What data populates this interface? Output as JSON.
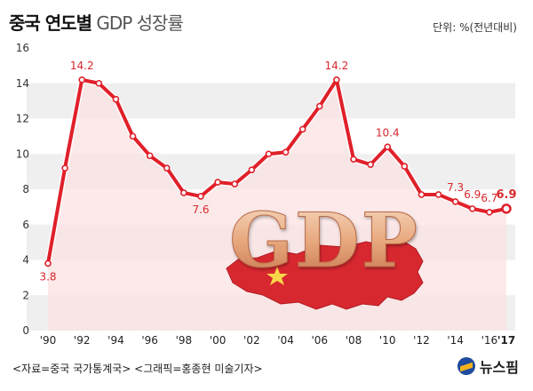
{
  "header": {
    "title_bold": "중국 연도별",
    "title_light": "GDP 성장률",
    "unit": "단위: %(전년대비)"
  },
  "footer": {
    "source": "<자료=중국 국가통계국> <그래픽=홍종현 미술기자>",
    "logo": "뉴스핌"
  },
  "illustration": {
    "text": "GDP",
    "map_color": "#d8282f",
    "text_color": "#e8b893"
  },
  "colors": {
    "line": "#e0202a",
    "area": "#fbe1e1",
    "band": "#efefef",
    "label": "#d8282f"
  },
  "chart_data": {
    "type": "line",
    "x": [
      1990,
      1991,
      1992,
      1993,
      1994,
      1995,
      1996,
      1997,
      1998,
      1999,
      2000,
      2001,
      2002,
      2003,
      2004,
      2005,
      2006,
      2007,
      2008,
      2009,
      2010,
      2011,
      2012,
      2013,
      2014,
      2015,
      2016,
      2017
    ],
    "y": [
      3.8,
      9.2,
      14.2,
      14.0,
      13.1,
      11.0,
      9.9,
      9.2,
      7.8,
      7.6,
      8.4,
      8.3,
      9.1,
      10.0,
      10.1,
      11.4,
      12.7,
      14.2,
      9.7,
      9.4,
      10.4,
      9.3,
      7.7,
      7.7,
      7.3,
      6.9,
      6.7,
      6.9
    ],
    "x_tick_labels": [
      "'90",
      "'92",
      "'94",
      "'96",
      "'98",
      "'00",
      "'02",
      "'04",
      "'06",
      "'08",
      "'10",
      "'12",
      "'14",
      "'16",
      "'17"
    ],
    "x_tick_values": [
      1990,
      1992,
      1994,
      1996,
      1998,
      2000,
      2002,
      2004,
      2006,
      2008,
      2010,
      2012,
      2014,
      2016,
      2017
    ],
    "y_ticks": [
      0,
      2,
      4,
      6,
      8,
      10,
      12,
      14,
      16
    ],
    "xlim": [
      1990,
      2017
    ],
    "ylim": [
      0,
      16
    ],
    "annotations": [
      {
        "x": 1990,
        "y": 3.8,
        "label": "3.8",
        "pos": "below",
        "bold": false
      },
      {
        "x": 1992,
        "y": 14.2,
        "label": "14.2",
        "pos": "above",
        "bold": false
      },
      {
        "x": 1999,
        "y": 7.6,
        "label": "7.6",
        "pos": "below",
        "bold": false
      },
      {
        "x": 2007,
        "y": 14.2,
        "label": "14.2",
        "pos": "above",
        "bold": false
      },
      {
        "x": 2010,
        "y": 10.4,
        "label": "10.4",
        "pos": "above",
        "bold": false
      },
      {
        "x": 2014,
        "y": 7.3,
        "label": "7.3",
        "pos": "above",
        "bold": false
      },
      {
        "x": 2015,
        "y": 6.9,
        "label": "6.9",
        "pos": "above",
        "bold": false
      },
      {
        "x": 2016,
        "y": 6.7,
        "label": "6.7",
        "pos": "above",
        "bold": false
      },
      {
        "x": 2017,
        "y": 6.9,
        "label": "6.9",
        "pos": "above",
        "bold": true
      }
    ],
    "title": "",
    "xlabel": "",
    "ylabel": "",
    "grid": "alternating horizontal bands"
  }
}
